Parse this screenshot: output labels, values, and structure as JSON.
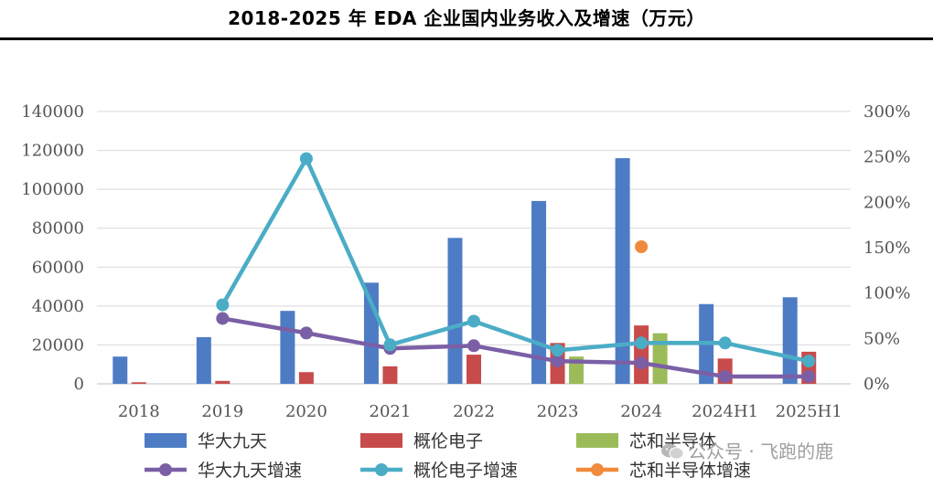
{
  "title": "2018-2025 年 EDA 企业国内业务收入及增速（万元）",
  "watermark": "公众号 · 飞跑的鹿",
  "colors": {
    "huada": "#4E7CC4",
    "gailun": "#C84B4B",
    "xinhe": "#9BBB59",
    "huada_growth": "#7B5FA6",
    "gailun_growth": "#4BACC6",
    "xinhe_growth": "#F08A3C"
  },
  "chart_data": {
    "type": "bar",
    "categories": [
      "2018",
      "2019",
      "2020",
      "2021",
      "2022",
      "2023",
      "2024",
      "2024H1",
      "2025H1"
    ],
    "y_left": {
      "min": 0,
      "max": 140000,
      "ticks": [
        "0",
        "20000",
        "40000",
        "60000",
        "80000",
        "100000",
        "120000",
        "140000"
      ]
    },
    "y_right": {
      "min": 0,
      "max": 3.0,
      "ticks": [
        "0%",
        "50%",
        "100%",
        "150%",
        "200%",
        "250%",
        "300%"
      ]
    },
    "grid": true,
    "legend_position": "bottom",
    "bar_series": [
      {
        "name": "华大九天",
        "color_key": "huada",
        "values": [
          14000,
          24000,
          37500,
          52000,
          75000,
          94000,
          116000,
          41000,
          44500
        ]
      },
      {
        "name": "概伦电子",
        "color_key": "gailun",
        "values": [
          800,
          1500,
          6000,
          9000,
          15000,
          21000,
          30000,
          13000,
          16500
        ]
      },
      {
        "name": "芯和半导体",
        "color_key": "xinhe",
        "values": [
          null,
          null,
          null,
          null,
          null,
          14000,
          26000,
          null,
          null
        ]
      }
    ],
    "line_series": [
      {
        "name": "华大九天增速",
        "color_key": "huada_growth",
        "values": [
          null,
          0.72,
          0.56,
          0.39,
          0.42,
          0.25,
          0.23,
          0.08,
          0.08
        ]
      },
      {
        "name": "概伦电子增速",
        "color_key": "gailun_growth",
        "values": [
          null,
          0.87,
          2.48,
          0.43,
          0.69,
          0.37,
          0.45,
          0.45,
          0.25
        ]
      },
      {
        "name": "芯和半导体增速",
        "color_key": "xinhe_growth",
        "values": [
          null,
          null,
          null,
          null,
          null,
          null,
          1.51,
          null,
          null
        ]
      }
    ],
    "legend": [
      {
        "label": "华大九天",
        "kind": "bar",
        "color_key": "huada"
      },
      {
        "label": "概伦电子",
        "kind": "bar",
        "color_key": "gailun"
      },
      {
        "label": "芯和半导体",
        "kind": "bar",
        "color_key": "xinhe"
      },
      {
        "label": "华大九天增速",
        "kind": "line",
        "color_key": "huada_growth"
      },
      {
        "label": "概伦电子增速",
        "kind": "line",
        "color_key": "gailun_growth"
      },
      {
        "label": "芯和半导体增速",
        "kind": "line",
        "color_key": "xinhe_growth"
      }
    ]
  }
}
